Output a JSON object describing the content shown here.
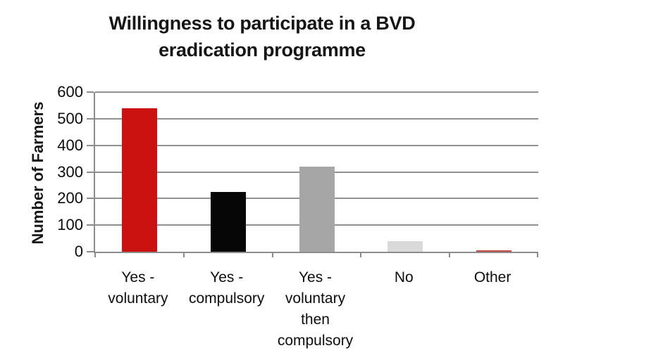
{
  "chart_data": {
    "type": "bar",
    "title": "Willingness to participate in a BVD eradication programme",
    "title_lines": [
      "Willingness to participate in a BVD",
      "eradication programme"
    ],
    "ylabel": "Number of Farmers",
    "xlabel": "",
    "categories": [
      "Yes - voluntary",
      "Yes - compulsory",
      "Yes - voluntary then compulsory",
      "No",
      "Other"
    ],
    "category_label_lines": [
      [
        "Yes -",
        "voluntary"
      ],
      [
        "Yes -",
        "compulsory"
      ],
      [
        "Yes -",
        "voluntary",
        "then",
        "compulsory"
      ],
      [
        "No"
      ],
      [
        "Other"
      ]
    ],
    "values": [
      540,
      225,
      320,
      40,
      5
    ],
    "bar_colors": [
      "#cc1111",
      "#060606",
      "#a6a6a6",
      "#d9d9d9",
      "#c24a42"
    ],
    "ylim": [
      0,
      600
    ],
    "yticks": [
      0,
      100,
      200,
      300,
      400,
      500,
      600
    ],
    "grid": "horizontal",
    "legend": "none",
    "colors": {
      "background": "#ffffff",
      "gridline": "#919191",
      "axis": "#8c8c8c",
      "text": "#0d0d0d",
      "title_text": "#161616"
    }
  }
}
